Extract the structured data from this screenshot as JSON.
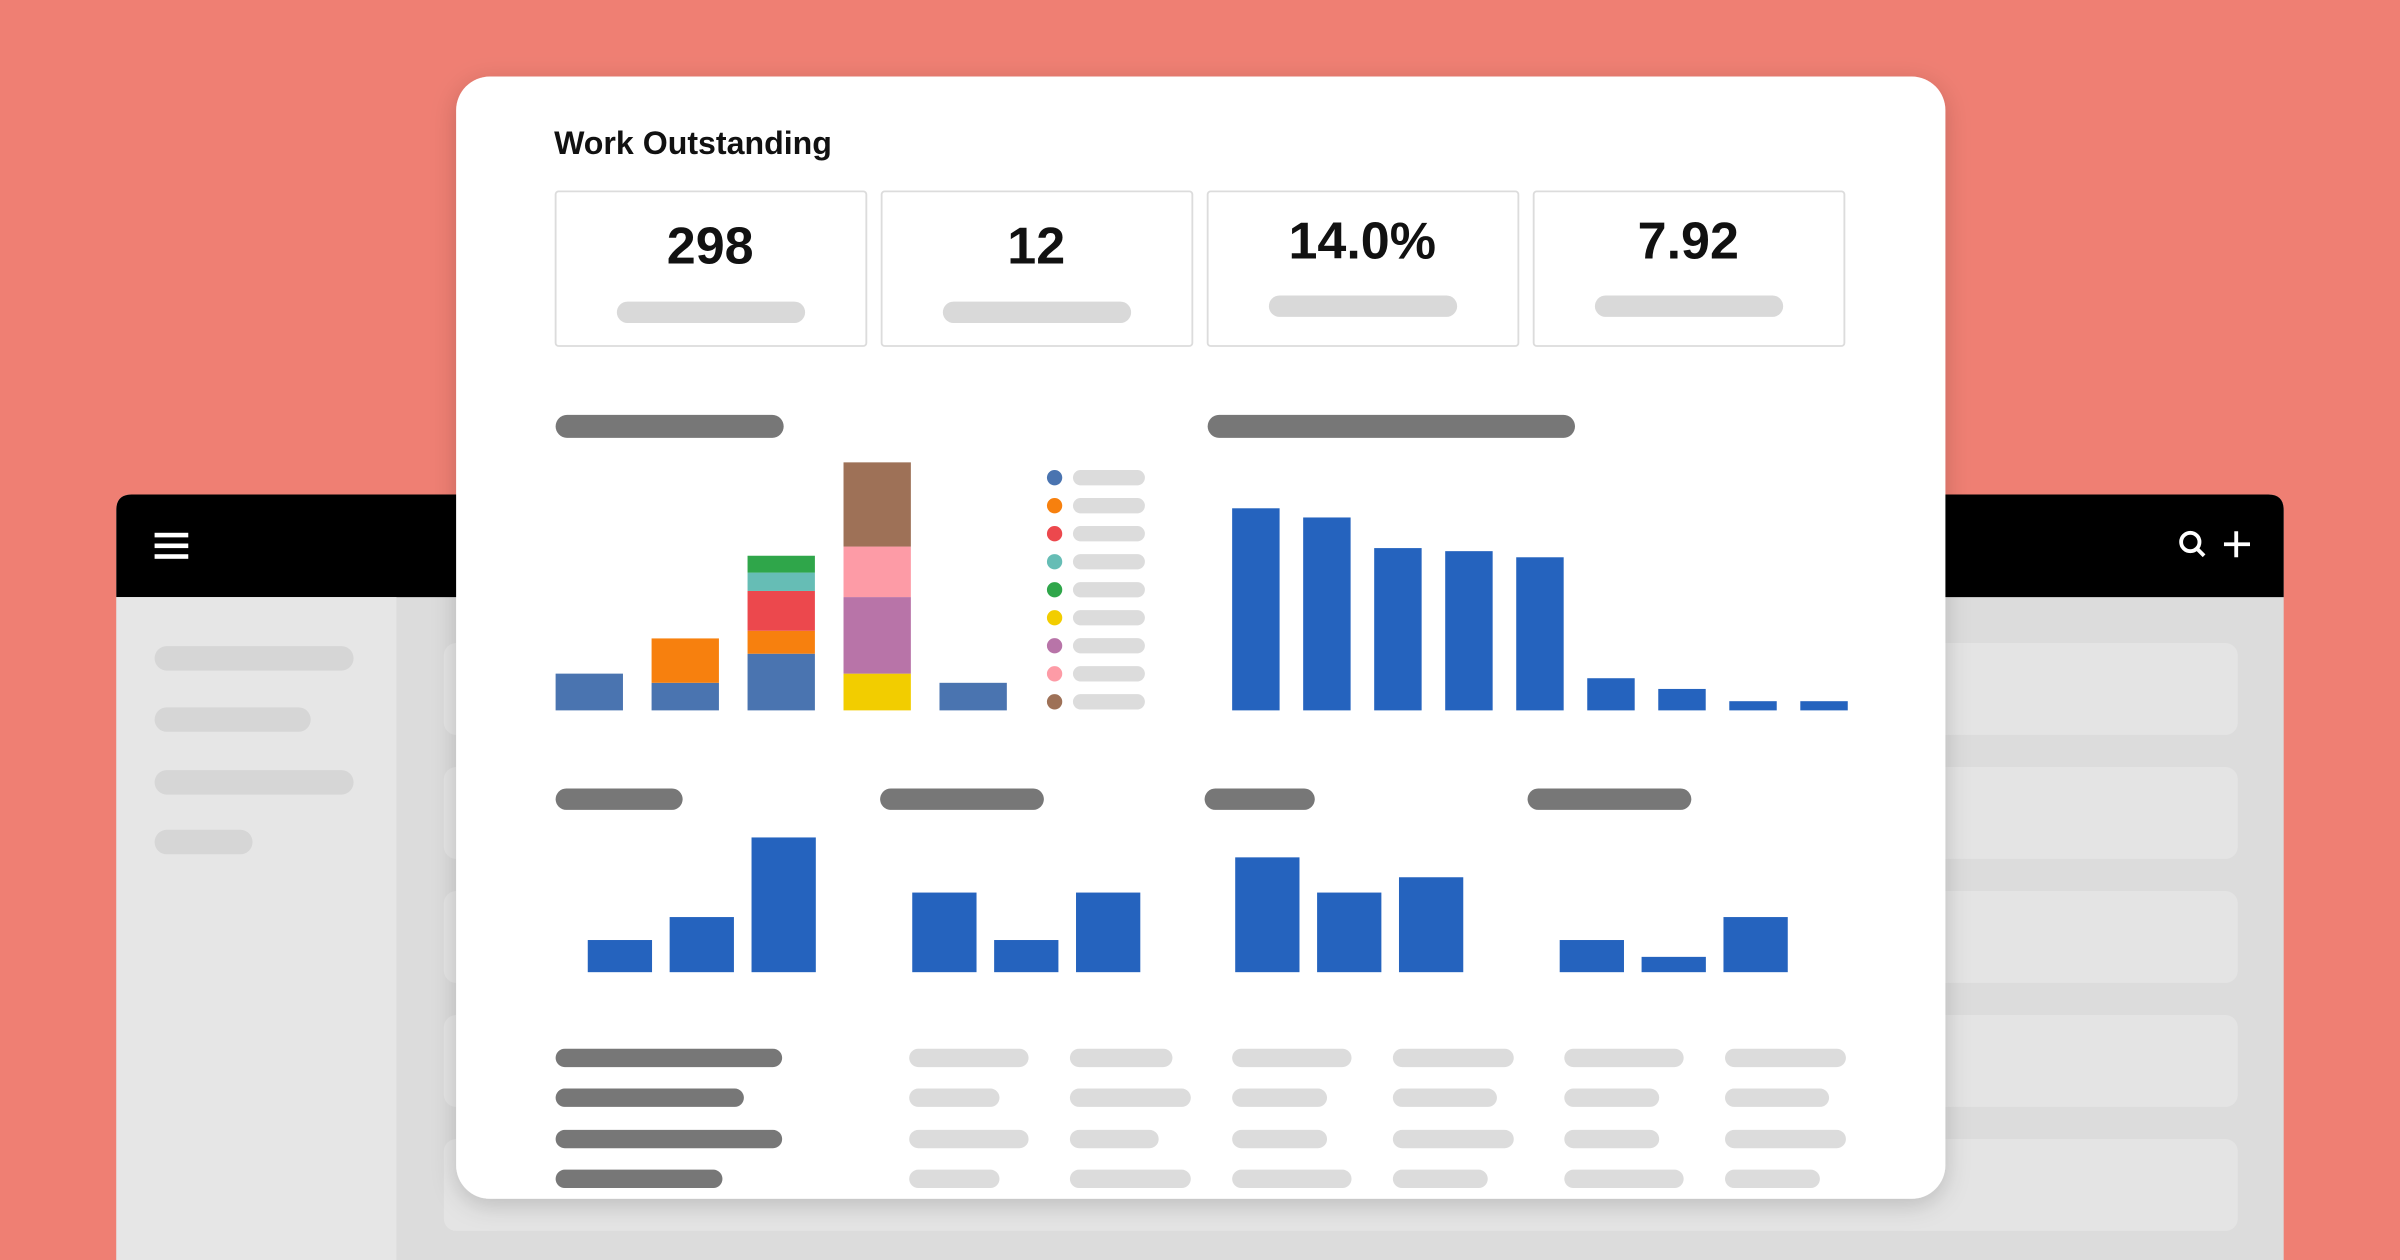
{
  "header": {
    "title": "Work Outstanding"
  },
  "kpis": [
    "298",
    "12",
    "14.0%",
    "7.92"
  ],
  "chart_data": [
    {
      "type": "bar",
      "stacked": true,
      "ylim": [
        0,
        170
      ],
      "series": [
        {
          "color": "#4a74b0",
          "values": [
            24,
            18,
            37,
            null,
            18
          ]
        },
        {
          "color": "#f7800e",
          "values": [
            null,
            29,
            15,
            null,
            null
          ]
        },
        {
          "color": "#ec484d",
          "values": [
            null,
            null,
            26,
            null,
            null
          ]
        },
        {
          "color": "#66bdb5",
          "values": [
            null,
            null,
            12,
            null,
            null
          ]
        },
        {
          "color": "#2fa64a",
          "values": [
            null,
            null,
            11,
            null,
            null
          ]
        },
        {
          "color": "#f2cd00",
          "values": [
            null,
            null,
            null,
            24,
            null
          ]
        },
        {
          "color": "#b874a8",
          "values": [
            null,
            null,
            null,
            50,
            null
          ]
        },
        {
          "color": "#fd9ba6",
          "values": [
            null,
            null,
            null,
            33,
            null
          ]
        },
        {
          "color": "#9e7157",
          "values": [
            null,
            null,
            null,
            55,
            null
          ]
        }
      ]
    },
    {
      "type": "bar",
      "color": "#2563be",
      "ylim": [
        0,
        140
      ],
      "values": [
        132,
        126,
        106,
        104,
        100,
        21,
        14,
        6,
        6
      ]
    },
    {
      "type": "bar",
      "color": "#2563be",
      "ylim": [
        0,
        95
      ],
      "values": [
        21,
        36,
        88
      ]
    },
    {
      "type": "bar",
      "color": "#2563be",
      "ylim": [
        0,
        95
      ],
      "values": [
        52,
        21,
        52
      ]
    },
    {
      "type": "bar",
      "color": "#2563be",
      "ylim": [
        0,
        95
      ],
      "values": [
        75,
        52,
        62
      ]
    },
    {
      "type": "bar",
      "color": "#2563be",
      "ylim": [
        0,
        95
      ],
      "values": [
        21,
        10,
        36
      ]
    }
  ]
}
